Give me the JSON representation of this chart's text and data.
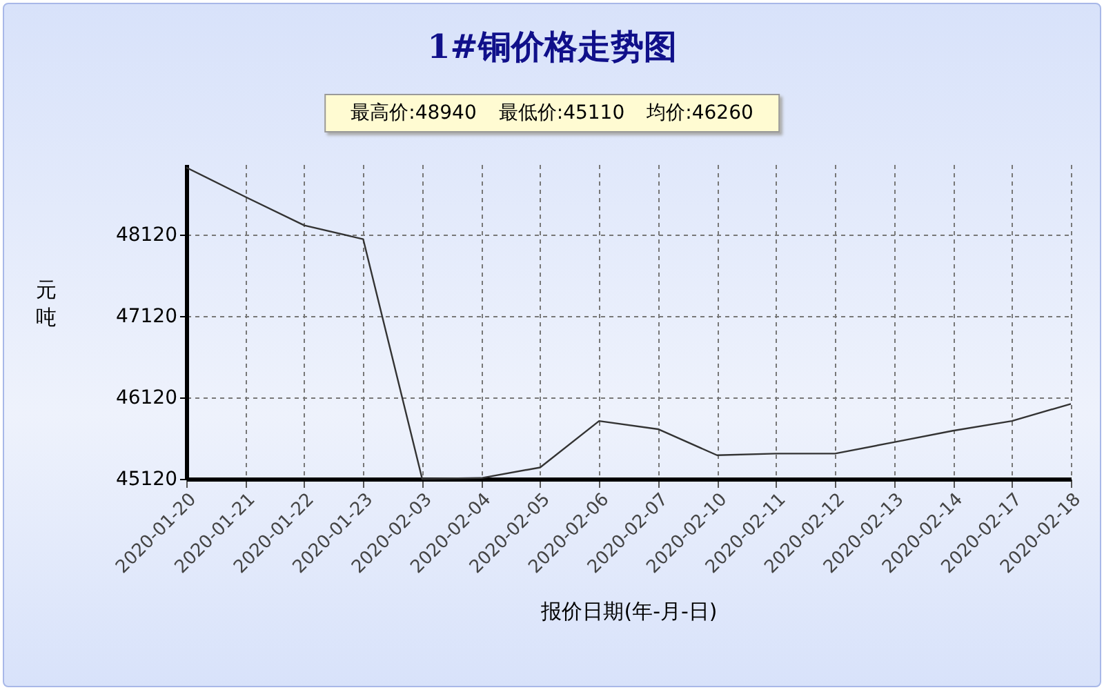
{
  "chart_data": {
    "type": "line",
    "title": "1#铜价格走势图",
    "xlabel": "报价日期(年-月-日)",
    "ylabel": "元吨",
    "annotations": [
      "最高价:48940",
      "最低价:45110",
      "均价:46260"
    ],
    "categories": [
      "2020-01-20",
      "2020-01-21",
      "2020-01-22",
      "2020-01-23",
      "2020-02-03",
      "2020-02-04",
      "2020-02-05",
      "2020-02-06",
      "2020-02-07",
      "2020-02-10",
      "2020-02-11",
      "2020-02-12",
      "2020-02-13",
      "2020-02-14",
      "2020-02-17",
      "2020-02-18"
    ],
    "series": [
      {
        "color": "#333333",
        "values": [
          48940,
          48580,
          48230,
          48060,
          45120,
          45130,
          45260,
          45830,
          45730,
          45410,
          45430,
          45430,
          45570,
          45710,
          45830,
          46040
        ]
      }
    ],
    "ylim": [
      45120,
      48980
    ],
    "yticks": [
      45120,
      46120,
      47120,
      48120
    ],
    "grid": true,
    "legend": false,
    "marker": "none",
    "line_style": "solid"
  }
}
